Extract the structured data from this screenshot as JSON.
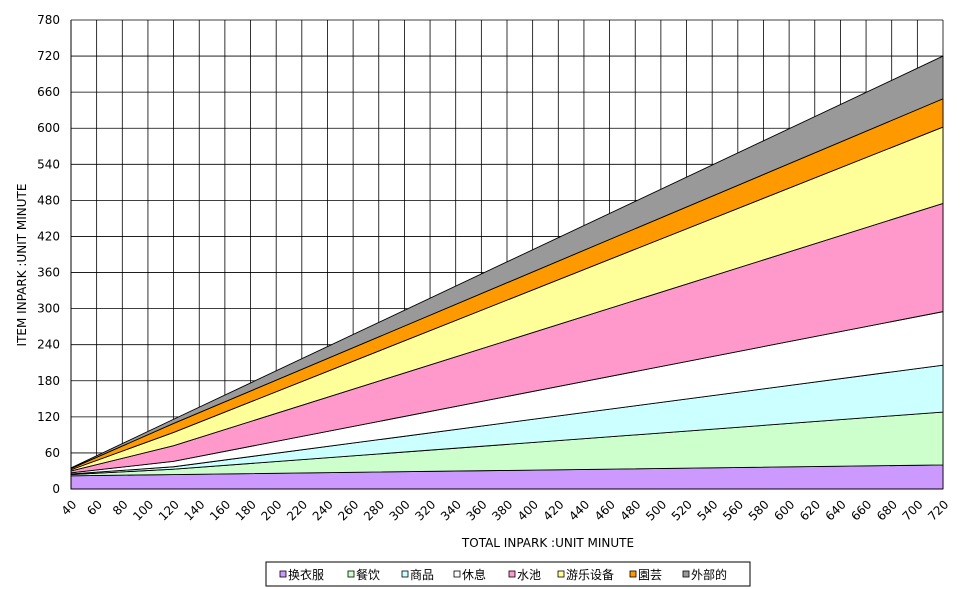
{
  "chart_data": {
    "type": "area",
    "stacked": true,
    "xlabel": "TOTAL INPARK :UNIT MINUTE",
    "ylabel": "ITEM INPARK :UNIT MINUTE",
    "xlim": [
      40,
      720
    ],
    "ylim": [
      0,
      780
    ],
    "x_ticks": [
      40,
      60,
      80,
      100,
      120,
      140,
      160,
      180,
      200,
      220,
      240,
      260,
      280,
      300,
      320,
      340,
      360,
      380,
      400,
      420,
      440,
      460,
      480,
      500,
      520,
      540,
      560,
      580,
      600,
      620,
      640,
      660,
      680,
      700,
      720
    ],
    "y_ticks": [
      0,
      60,
      120,
      180,
      240,
      300,
      360,
      420,
      480,
      540,
      600,
      660,
      720,
      780
    ],
    "grid": true,
    "legend_position": "bottom",
    "x": [
      40,
      120,
      720
    ],
    "series": [
      {
        "name": "换衣服",
        "color": "#cc99ff",
        "values": [
          22,
          24,
          40
        ]
      },
      {
        "name": "餐饮",
        "color": "#ccffcc",
        "values": [
          2,
          9,
          88
        ]
      },
      {
        "name": "商品",
        "color": "#ccffff",
        "values": [
          1,
          4,
          78
        ]
      },
      {
        "name": "休息",
        "color": "#ffffff",
        "values": [
          2,
          9,
          89
        ]
      },
      {
        "name": "水池",
        "color": "#ff99cc",
        "values": [
          3,
          26,
          180
        ]
      },
      {
        "name": "游乐设备",
        "color": "#ffff99",
        "values": [
          2,
          22,
          127
        ]
      },
      {
        "name": "園芸",
        "color": "#ff9900",
        "values": [
          2,
          15,
          47
        ]
      },
      {
        "name": "外部的",
        "color": "#999999",
        "values": [
          1,
          7,
          71
        ]
      }
    ]
  }
}
